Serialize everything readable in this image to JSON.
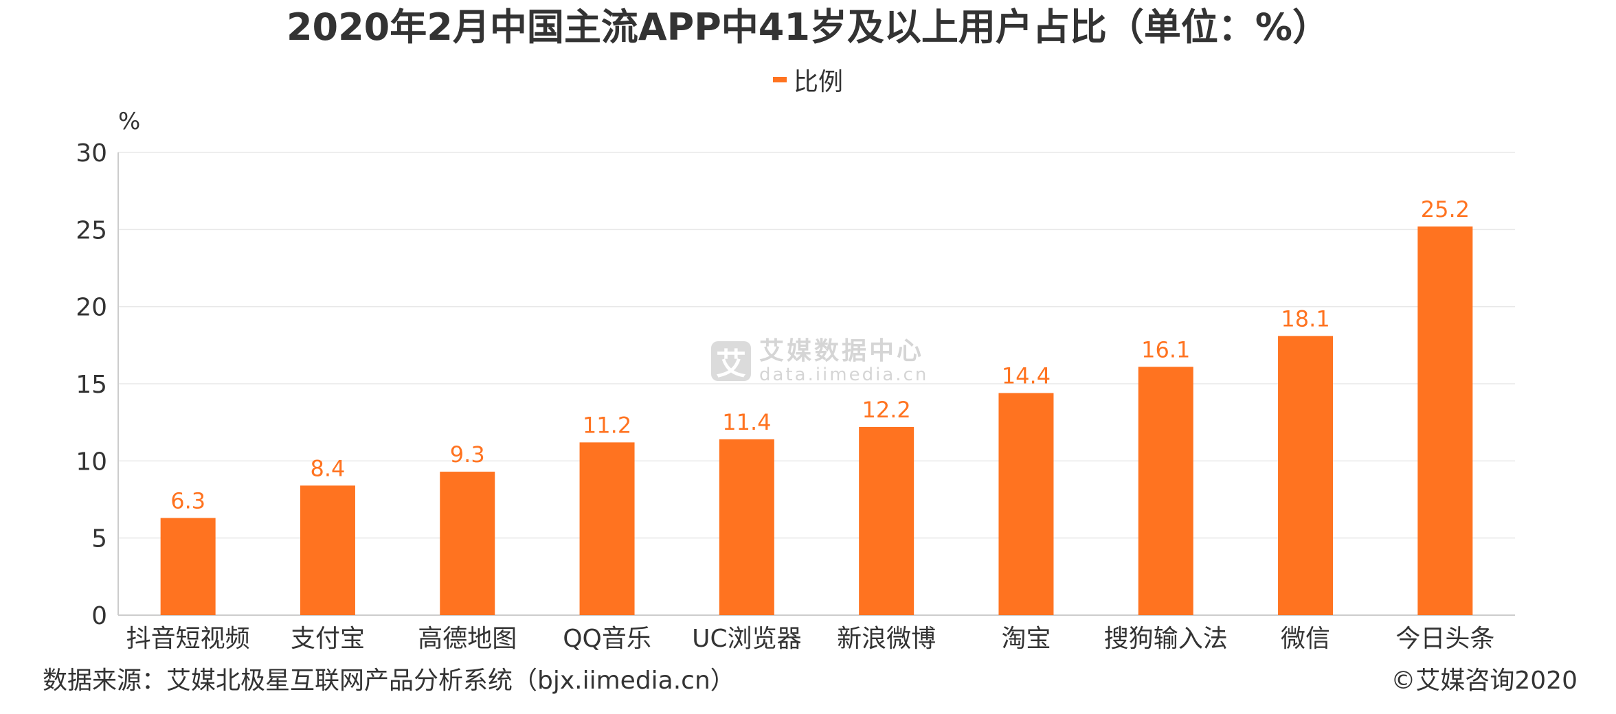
{
  "title": "2020年2月中国主流APP中41岁及以上用户占比（单位：%）",
  "legend": {
    "label": "比例"
  },
  "watermark": {
    "name": "艾媒数据中心",
    "url": "data.iimedia.cn",
    "logo_char": "艾"
  },
  "footer": {
    "source": "数据来源：艾媒北极星互联网产品分析系统（bjx.iimedia.cn）",
    "copyright": "©艾媒咨询2020"
  },
  "colors": {
    "bar": "#FF7320",
    "label": "#FF7320",
    "grid": "#E8E8E8",
    "axis": "#CCCCCC",
    "text": "#333333"
  },
  "chart_data": {
    "type": "bar",
    "title": "2020年2月中国主流APP中41岁及以上用户占比（单位：%）",
    "xlabel": "",
    "ylabel": "%",
    "ylim": [
      0,
      30
    ],
    "yticks": [
      0,
      5,
      10,
      15,
      20,
      25,
      30
    ],
    "grid": true,
    "legend_position": "top-center",
    "categories": [
      "抖音短视频",
      "支付宝",
      "高德地图",
      "QQ音乐",
      "UC浏览器",
      "新浪微博",
      "淘宝",
      "搜狗输入法",
      "微信",
      "今日头条"
    ],
    "series": [
      {
        "name": "比例",
        "values": [
          6.3,
          8.4,
          9.3,
          11.2,
          11.4,
          12.2,
          14.4,
          16.1,
          18.1,
          25.2
        ]
      }
    ],
    "value_labels": [
      "6.3",
      "8.4",
      "9.3",
      "11.2",
      "11.4",
      "12.2",
      "14.4",
      "16.1",
      "18.1",
      "25.2"
    ]
  }
}
